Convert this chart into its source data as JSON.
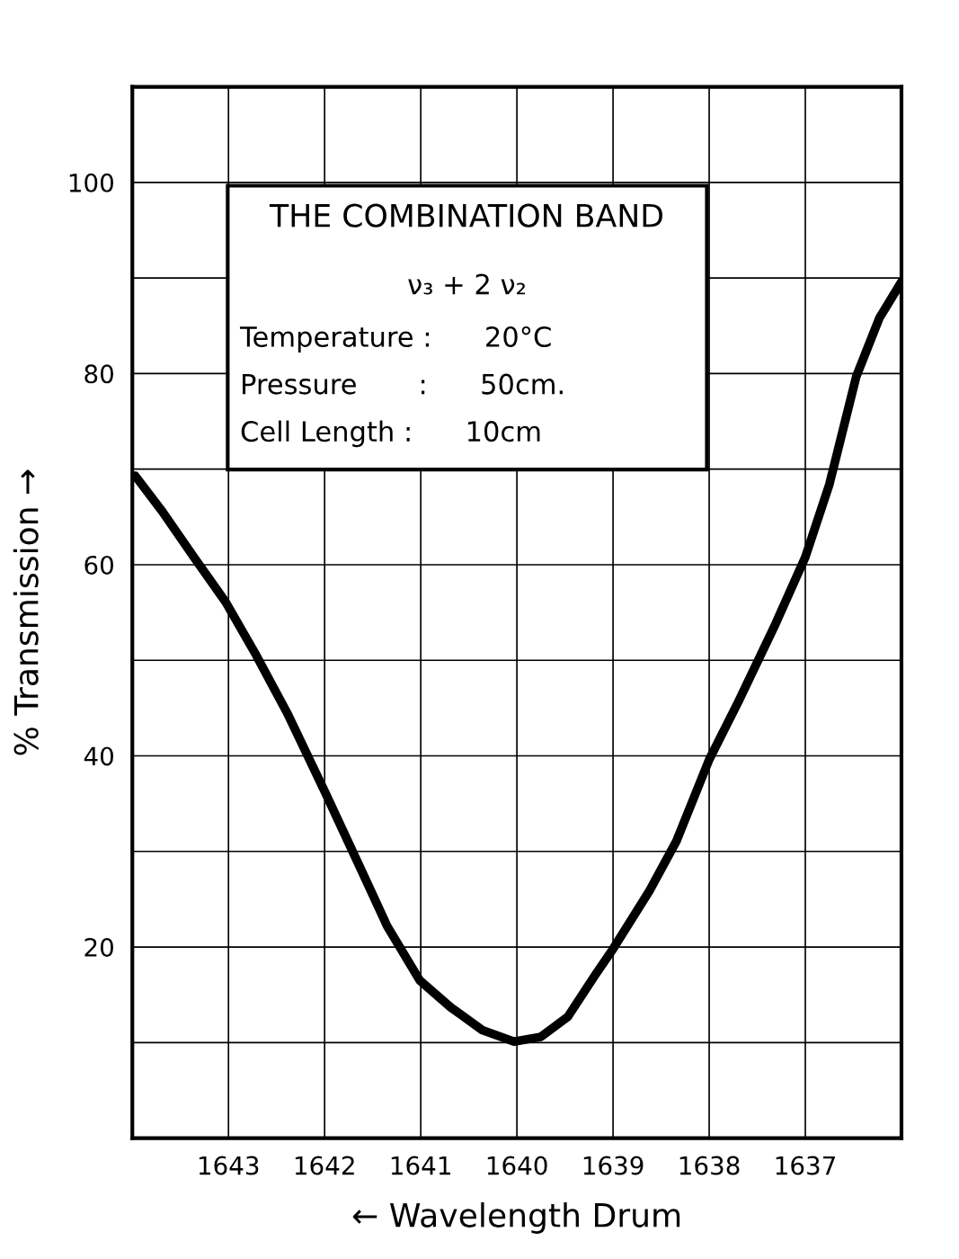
{
  "chart_data": {
    "type": "line",
    "title": "THE COMBINATION BAND",
    "xlabel": "← Wavelength Drum",
    "ylabel": "% Transmission →",
    "annotations": [
      "ν₃ + 2 ν₂",
      "Temperature :      20°C",
      "Pressure       :      50cm.",
      "Cell Length :      10cm"
    ],
    "xlim": [
      1644,
      1636
    ],
    "xticks": [
      1643,
      1642,
      1641,
      1640,
      1639,
      1638,
      1637
    ],
    "ylim": [
      0,
      110
    ],
    "yticks": [
      {
        "value": 10,
        "label": null
      },
      20,
      {
        "value": 30,
        "label": null
      },
      40,
      {
        "value": 50,
        "label": null
      },
      60,
      {
        "value": 70,
        "label": null
      },
      80,
      {
        "value": 90,
        "label": null
      },
      100
    ],
    "grid": true,
    "marker": "none",
    "line_style": "solid",
    "series": [
      {
        "color": "#000000",
        "x": [
          1643.97,
          1643.69,
          1643.36,
          1643.03,
          1642.71,
          1642.38,
          1642.0,
          1641.63,
          1641.35,
          1641.01,
          1640.69,
          1640.36,
          1640.03,
          1639.75,
          1639.47,
          1639.19,
          1639.0,
          1638.62,
          1638.34,
          1638.0,
          1637.69,
          1637.31,
          1637.0,
          1636.75,
          1636.47,
          1636.23,
          1636.0
        ],
        "values": [
          69.3,
          65.6,
          60.8,
          56.1,
          50.5,
          44.3,
          36.3,
          28.3,
          22.2,
          16.5,
          13.7,
          11.3,
          10.1,
          10.6,
          12.7,
          17.0,
          19.8,
          25.9,
          31.1,
          39.6,
          45.8,
          53.8,
          60.8,
          68.4,
          79.7,
          85.8,
          89.6
        ]
      }
    ]
  }
}
